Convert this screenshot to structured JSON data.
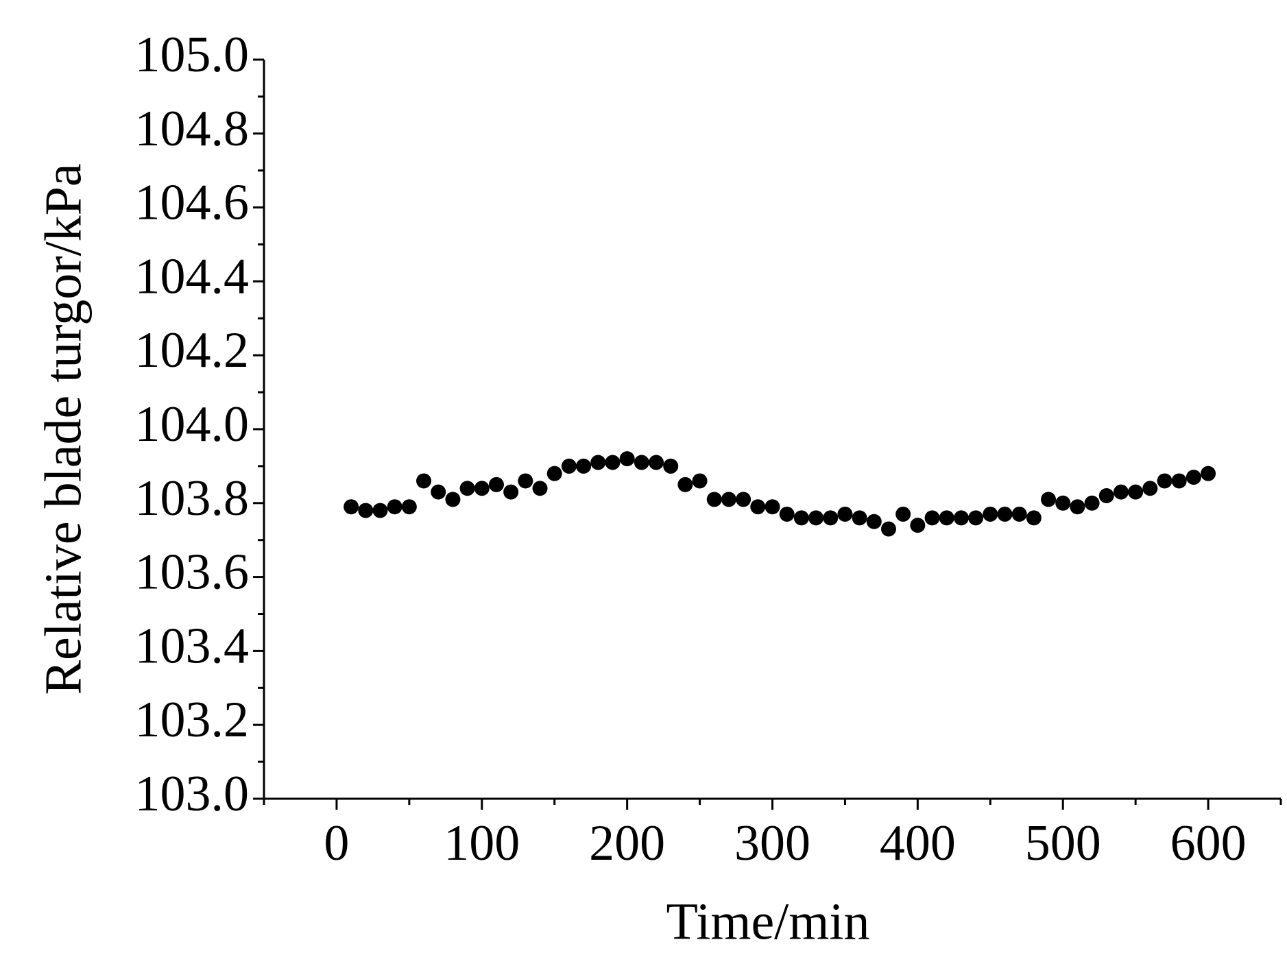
{
  "chart_data": {
    "type": "scatter",
    "x_label": "Time/min",
    "y_label": "Relative blade turgor/kPa",
    "x": [
      10,
      20,
      30,
      40,
      50,
      60,
      70,
      80,
      90,
      100,
      110,
      120,
      130,
      140,
      150,
      160,
      170,
      180,
      190,
      200,
      210,
      220,
      230,
      240,
      250,
      260,
      270,
      280,
      290,
      300,
      310,
      320,
      330,
      340,
      350,
      360,
      370,
      380,
      390,
      400,
      410,
      420,
      430,
      440,
      450,
      460,
      470,
      480,
      490,
      500,
      510,
      520,
      530,
      540,
      550,
      560,
      570,
      580,
      590,
      600
    ],
    "values": [
      103.79,
      103.78,
      103.78,
      103.79,
      103.79,
      103.86,
      103.83,
      103.81,
      103.84,
      103.84,
      103.85,
      103.83,
      103.86,
      103.84,
      103.88,
      103.9,
      103.9,
      103.91,
      103.91,
      103.92,
      103.91,
      103.91,
      103.9,
      103.85,
      103.86,
      103.81,
      103.81,
      103.81,
      103.79,
      103.79,
      103.77,
      103.76,
      103.76,
      103.76,
      103.77,
      103.76,
      103.75,
      103.73,
      103.77,
      103.74,
      103.76,
      103.76,
      103.76,
      103.76,
      103.77,
      103.77,
      103.77,
      103.76,
      103.81,
      103.8,
      103.79,
      103.8,
      103.82,
      103.83,
      103.83,
      103.84,
      103.86,
      103.86,
      103.87,
      103.88
    ],
    "color": "#000000",
    "xlim": [
      -50,
      650
    ],
    "ylim": [
      103.0,
      105.0
    ],
    "xticks": [
      0,
      100,
      200,
      300,
      400,
      500,
      600
    ],
    "yticks": [
      {
        "value": 103.0,
        "label": "103.0"
      },
      {
        "value": 103.2,
        "label": "103.2"
      },
      {
        "value": 103.4,
        "label": "103.4"
      },
      {
        "value": 103.6,
        "label": "103.6"
      },
      {
        "value": 103.8,
        "label": "103.8"
      },
      {
        "value": 104.0,
        "label": "104.0"
      },
      {
        "value": 104.2,
        "label": "104.2"
      },
      {
        "value": 104.4,
        "label": "104.4"
      },
      {
        "value": 104.6,
        "label": "104.6"
      },
      {
        "value": 104.8,
        "label": "104.8"
      },
      {
        "value": 105.0,
        "label": "105.0"
      }
    ],
    "grid": false
  }
}
